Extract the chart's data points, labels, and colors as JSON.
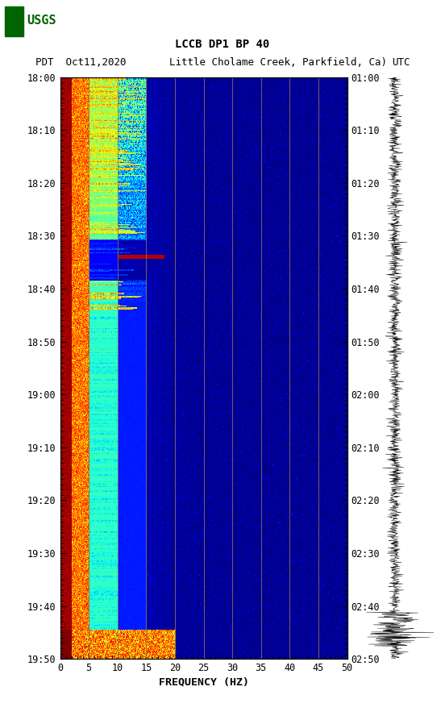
{
  "title_line1": "LCCB DP1 BP 40",
  "title_line2_left": "PDT  Oct11,2020",
  "title_line2_mid": "Little Cholame Creek, Parkfield, Ca)",
  "title_line2_right": "UTC",
  "xlabel": "FREQUENCY (HZ)",
  "freq_min": 0,
  "freq_max": 50,
  "freq_ticks": [
    0,
    5,
    10,
    15,
    20,
    25,
    30,
    35,
    40,
    45,
    50
  ],
  "time_ticks_left": [
    "18:00",
    "18:10",
    "18:20",
    "18:30",
    "18:40",
    "18:50",
    "19:00",
    "19:10",
    "19:20",
    "19:30",
    "19:40",
    "19:50"
  ],
  "time_ticks_right": [
    "01:00",
    "01:10",
    "01:20",
    "01:30",
    "01:40",
    "01:50",
    "02:00",
    "02:10",
    "02:20",
    "02:30",
    "02:40",
    "02:50"
  ],
  "n_time": 600,
  "n_freq": 500,
  "background_color": "#ffffff",
  "vertical_line_color": "#8B7355",
  "vertical_line_positions": [
    5,
    10,
    15,
    20,
    25,
    30,
    35,
    40,
    45
  ],
  "usgs_logo_color": "#006400",
  "figsize": [
    5.52,
    8.93
  ],
  "dpi": 100
}
